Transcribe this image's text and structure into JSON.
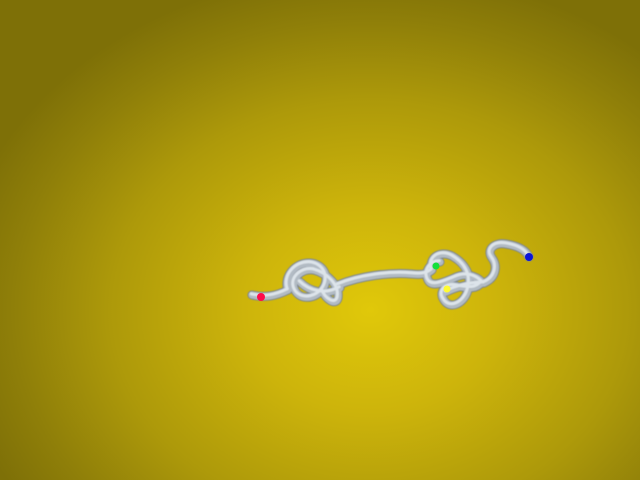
{
  "scene": {
    "background_colors": [
      "#e0c80a",
      "#7e7007"
    ],
    "tube_colors": {
      "light": "#dde4ea",
      "mid": "#b2bbc4",
      "dark": "#7c858f"
    }
  },
  "markers": [
    {
      "name": "red-marker",
      "color": "#ff0a4a"
    },
    {
      "name": "green-marker",
      "color": "#12e03a"
    },
    {
      "name": "yellow-marker",
      "color": "#fffb33"
    },
    {
      "name": "blue-marker",
      "color": "#0a14d8"
    }
  ]
}
